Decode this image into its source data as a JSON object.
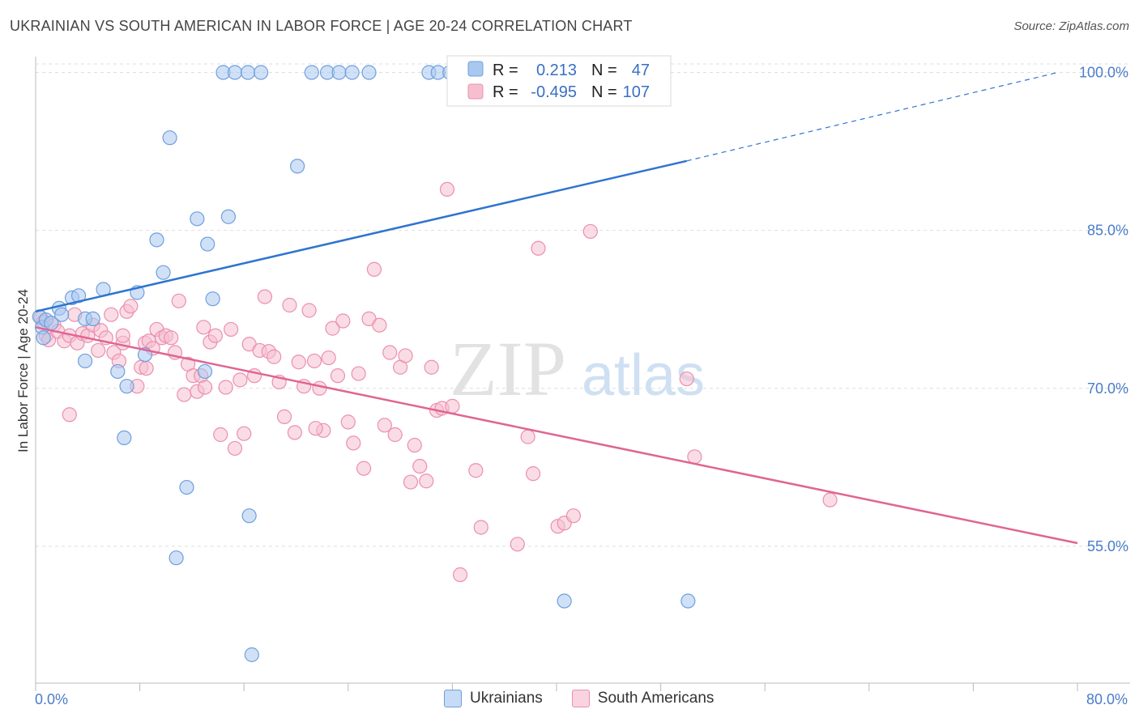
{
  "title": "UKRAINIAN VS SOUTH AMERICAN IN LABOR FORCE | AGE 20-24 CORRELATION CHART",
  "source": "Source: ZipAtlas.com",
  "watermark": {
    "zip": "ZIP",
    "atlas": "atlas"
  },
  "colors": {
    "blue_fill": "#a9c8f0",
    "blue_stroke": "#6f9fdc",
    "blue_line": "#2f74d0",
    "pink_fill": "#f6bfd0",
    "pink_stroke": "#eb8fb0",
    "pink_line": "#e06593",
    "axis_text": "#4a7cc9"
  },
  "legend": {
    "rows": [
      {
        "r_label": "R =",
        "r_value": "0.213",
        "n_label": "N =",
        "n_value": "47"
      },
      {
        "r_label": "R =",
        "r_value": "-0.495",
        "n_label": "N =",
        "n_value": "107"
      }
    ]
  },
  "bottom_legend": [
    "Ukrainians",
    "South Americans"
  ],
  "chart_data": {
    "type": "scatter",
    "title": "UKRAINIAN VS SOUTH AMERICAN IN LABOR FORCE | AGE 20-24 CORRELATION CHART",
    "xlabel": "",
    "ylabel": "In Labor Force | Age 20-24",
    "xlim": [
      0,
      80
    ],
    "ylim": [
      42,
      101.5
    ],
    "x_tick_labels": [
      "0.0%",
      "80.0%"
    ],
    "y_ticks": [
      55,
      70,
      85,
      100
    ],
    "y_tick_labels": [
      "55.0%",
      "70.0%",
      "85.0%",
      "100.0%"
    ],
    "grid": true,
    "legend_position": "top-center",
    "series": [
      {
        "name": "Ukrainians",
        "r": 0.213,
        "n": 47,
        "trend": {
          "x0": 0,
          "y0": 77.3,
          "x1": 50,
          "y1": 91.6,
          "dashed_to_x": 78.5,
          "dashed_to_y": 100
        },
        "points": [
          [
            0.3,
            76.8
          ],
          [
            0.5,
            75.8
          ],
          [
            0.6,
            74.8
          ],
          [
            0.8,
            76.5
          ],
          [
            1.2,
            76.2
          ],
          [
            1.8,
            77.6
          ],
          [
            2.0,
            77.0
          ],
          [
            2.8,
            78.6
          ],
          [
            3.3,
            78.8
          ],
          [
            3.8,
            76.6
          ],
          [
            4.4,
            76.6
          ],
          [
            3.8,
            72.6
          ],
          [
            5.2,
            79.4
          ],
          [
            6.3,
            71.6
          ],
          [
            7.0,
            70.2
          ],
          [
            6.8,
            65.3
          ],
          [
            7.8,
            79.1
          ],
          [
            8.4,
            73.2
          ],
          [
            9.3,
            84.1
          ],
          [
            9.8,
            81.0
          ],
          [
            10.3,
            93.8
          ],
          [
            10.8,
            53.9
          ],
          [
            11.6,
            60.6
          ],
          [
            12.4,
            86.1
          ],
          [
            13.2,
            83.7
          ],
          [
            13.0,
            71.6
          ],
          [
            13.6,
            78.5
          ],
          [
            14.8,
            86.3
          ],
          [
            16.4,
            57.9
          ],
          [
            16.6,
            44.7
          ],
          [
            20.1,
            91.1
          ],
          [
            14.4,
            100.0
          ],
          [
            15.3,
            100.0
          ],
          [
            16.3,
            100.0
          ],
          [
            17.3,
            100.0
          ],
          [
            21.2,
            100.0
          ],
          [
            22.4,
            100.0
          ],
          [
            23.3,
            100.0
          ],
          [
            24.3,
            100.0
          ],
          [
            25.6,
            100.0
          ],
          [
            30.2,
            100.0
          ],
          [
            30.9,
            100.0
          ],
          [
            31.8,
            100.0
          ],
          [
            33.0,
            100.0
          ],
          [
            34.6,
            100.0
          ],
          [
            40.6,
            49.8
          ],
          [
            50.1,
            49.8
          ]
        ]
      },
      {
        "name": "South Americans",
        "r": -0.495,
        "n": 107,
        "trend": {
          "x0": 0,
          "y0": 75.8,
          "x1": 80,
          "y1": 55.3
        },
        "points": [
          [
            0.4,
            76.7
          ],
          [
            0.6,
            76.3
          ],
          [
            0.8,
            75.0
          ],
          [
            1.0,
            74.6
          ],
          [
            1.4,
            76.0
          ],
          [
            1.7,
            75.4
          ],
          [
            2.2,
            74.5
          ],
          [
            2.6,
            75.0
          ],
          [
            3.0,
            77.0
          ],
          [
            3.2,
            74.3
          ],
          [
            3.6,
            75.2
          ],
          [
            4.0,
            75.0
          ],
          [
            4.4,
            76.0
          ],
          [
            4.8,
            73.6
          ],
          [
            5.0,
            75.5
          ],
          [
            5.4,
            74.8
          ],
          [
            5.8,
            77.0
          ],
          [
            6.0,
            73.4
          ],
          [
            6.4,
            72.6
          ],
          [
            6.7,
            74.3
          ],
          [
            7.0,
            77.3
          ],
          [
            7.3,
            77.8
          ],
          [
            7.8,
            70.2
          ],
          [
            8.1,
            72.0
          ],
          [
            8.4,
            74.3
          ],
          [
            8.7,
            74.5
          ],
          [
            9.0,
            73.8
          ],
          [
            9.3,
            75.6
          ],
          [
            9.7,
            74.8
          ],
          [
            10.0,
            75.0
          ],
          [
            10.4,
            74.8
          ],
          [
            10.7,
            73.4
          ],
          [
            11.0,
            78.3
          ],
          [
            11.4,
            69.4
          ],
          [
            11.7,
            72.3
          ],
          [
            12.1,
            71.2
          ],
          [
            12.4,
            69.7
          ],
          [
            12.7,
            71.2
          ],
          [
            13.0,
            70.1
          ],
          [
            13.4,
            74.4
          ],
          [
            13.8,
            75.0
          ],
          [
            14.2,
            65.6
          ],
          [
            14.6,
            70.1
          ],
          [
            15.0,
            75.6
          ],
          [
            15.3,
            64.3
          ],
          [
            15.7,
            70.8
          ],
          [
            16.0,
            65.7
          ],
          [
            16.4,
            74.2
          ],
          [
            16.8,
            71.2
          ],
          [
            17.2,
            73.6
          ],
          [
            17.6,
            78.7
          ],
          [
            17.9,
            73.5
          ],
          [
            18.3,
            73.0
          ],
          [
            18.7,
            70.6
          ],
          [
            19.1,
            67.3
          ],
          [
            19.5,
            77.9
          ],
          [
            19.9,
            65.8
          ],
          [
            20.2,
            72.5
          ],
          [
            20.6,
            70.2
          ],
          [
            21.0,
            77.4
          ],
          [
            21.4,
            72.6
          ],
          [
            21.8,
            70.0
          ],
          [
            22.1,
            66.0
          ],
          [
            22.5,
            72.9
          ],
          [
            22.8,
            75.7
          ],
          [
            23.2,
            71.2
          ],
          [
            23.6,
            76.4
          ],
          [
            24.0,
            66.8
          ],
          [
            24.4,
            64.8
          ],
          [
            24.8,
            71.4
          ],
          [
            25.2,
            62.4
          ],
          [
            25.6,
            76.6
          ],
          [
            26.0,
            81.3
          ],
          [
            26.4,
            76.0
          ],
          [
            26.8,
            66.5
          ],
          [
            27.2,
            73.4
          ],
          [
            27.6,
            65.6
          ],
          [
            28.0,
            72.0
          ],
          [
            28.4,
            73.1
          ],
          [
            28.8,
            61.1
          ],
          [
            29.1,
            64.6
          ],
          [
            29.5,
            62.6
          ],
          [
            30.0,
            61.2
          ],
          [
            30.4,
            72.0
          ],
          [
            30.8,
            67.9
          ],
          [
            31.2,
            68.1
          ],
          [
            31.6,
            88.9
          ],
          [
            32.0,
            68.3
          ],
          [
            32.6,
            52.3
          ],
          [
            33.8,
            62.2
          ],
          [
            34.2,
            56.8
          ],
          [
            37.0,
            55.2
          ],
          [
            37.8,
            65.4
          ],
          [
            38.6,
            83.3
          ],
          [
            38.2,
            61.9
          ],
          [
            40.1,
            56.9
          ],
          [
            40.6,
            57.2
          ],
          [
            41.3,
            57.9
          ],
          [
            42.6,
            84.9
          ],
          [
            50.0,
            70.9
          ],
          [
            50.6,
            63.5
          ],
          [
            61.0,
            59.4
          ],
          [
            8.5,
            71.9
          ],
          [
            12.9,
            75.8
          ],
          [
            6.7,
            75.0
          ],
          [
            2.6,
            67.5
          ],
          [
            21.5,
            66.2
          ]
        ]
      }
    ]
  }
}
